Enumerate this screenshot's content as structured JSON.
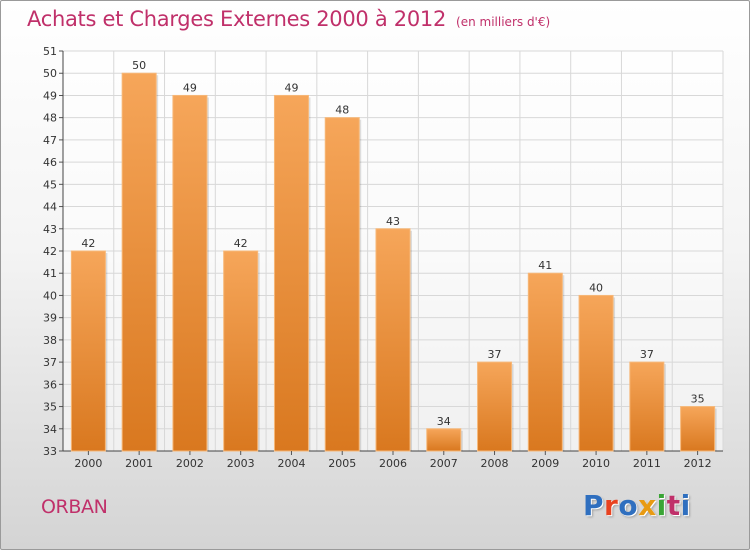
{
  "title": "Achats et Charges Externes 2000 à 2012",
  "unit": "(en milliers d'€)",
  "commune": "ORBAN",
  "logo": {
    "text": "Proxiti",
    "colors": [
      "#2f6fbf",
      "#e8421f",
      "#2f6fbf",
      "#e89a12",
      "#3aa535",
      "#c0306a",
      "#2f6fbf"
    ]
  },
  "colors": {
    "accent": "#c0306a",
    "bar_top": "#f6a65a",
    "bar_bottom": "#d9781f",
    "grid": "#d8d8d8"
  },
  "chart_data": {
    "type": "bar",
    "title": "Achats et Charges Externes 2000 à 2012",
    "subtitle": "(en milliers d'€)",
    "categories": [
      "2000",
      "2001",
      "2002",
      "2003",
      "2004",
      "2005",
      "2006",
      "2007",
      "2008",
      "2009",
      "2010",
      "2011",
      "2012"
    ],
    "values": [
      42,
      50,
      49,
      42,
      49,
      48,
      43,
      34,
      37,
      41,
      40,
      37,
      35
    ],
    "ylim": [
      33,
      51
    ],
    "yticks": [
      "33",
      "34",
      "35",
      "36",
      "37",
      "38",
      "39",
      "40",
      "41",
      "42",
      "43",
      "44",
      "45",
      "46",
      "47",
      "48",
      "49",
      "50",
      "51"
    ],
    "grid": true,
    "data_labels": true
  }
}
